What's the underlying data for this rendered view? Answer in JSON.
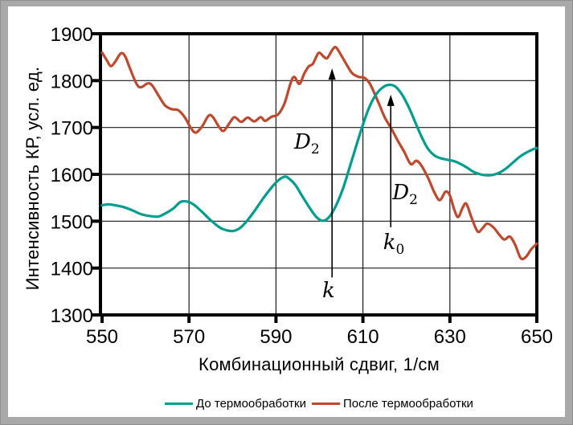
{
  "frame": {
    "outer_bg": "#a9a9a9",
    "panel_bg": "#ffffff",
    "axis_color": "#000000",
    "grid_color": "#1a1a1a"
  },
  "chart_data": {
    "type": "line",
    "title": "",
    "xlabel": "Комбинационный сдвиг, 1/см",
    "ylabel": "Интенсивность КР, усл. ед.",
    "xlim": [
      550,
      650
    ],
    "ylim": [
      1300,
      1900
    ],
    "x_ticks": [
      550,
      570,
      590,
      610,
      630,
      650
    ],
    "y_ticks": [
      1300,
      1400,
      1500,
      1600,
      1700,
      1800,
      1900
    ],
    "grid": true,
    "legend_position": "bottom",
    "series": [
      {
        "name": "До термообработки",
        "color": "#009e8f",
        "points": [
          [
            550,
            1534
          ],
          [
            551.5,
            1536
          ],
          [
            553,
            1534
          ],
          [
            555,
            1530
          ],
          [
            557,
            1523
          ],
          [
            559,
            1515
          ],
          [
            561,
            1511
          ],
          [
            563,
            1510
          ],
          [
            565,
            1519
          ],
          [
            566.5,
            1528
          ],
          [
            568,
            1541
          ],
          [
            569.5,
            1542
          ],
          [
            571,
            1536
          ],
          [
            573,
            1520
          ],
          [
            575,
            1502
          ],
          [
            577,
            1487
          ],
          [
            578.5,
            1481
          ],
          [
            580,
            1479
          ],
          [
            581.5,
            1484
          ],
          [
            583,
            1497
          ],
          [
            585,
            1521
          ],
          [
            587,
            1548
          ],
          [
            589,
            1572
          ],
          [
            590.5,
            1587
          ],
          [
            592,
            1595
          ],
          [
            593,
            1591
          ],
          [
            594.5,
            1577
          ],
          [
            596,
            1554
          ],
          [
            597.5,
            1532
          ],
          [
            599,
            1512
          ],
          [
            600.3,
            1502
          ],
          [
            601.3,
            1502
          ],
          [
            602.5,
            1512
          ],
          [
            604,
            1537
          ],
          [
            605.5,
            1572
          ],
          [
            607,
            1617
          ],
          [
            608.5,
            1662
          ],
          [
            610,
            1706
          ],
          [
            611.5,
            1744
          ],
          [
            613,
            1770
          ],
          [
            614.5,
            1785
          ],
          [
            616,
            1791
          ],
          [
            617.5,
            1787
          ],
          [
            619,
            1770
          ],
          [
            620.5,
            1744
          ],
          [
            622,
            1712
          ],
          [
            623.5,
            1680
          ],
          [
            625,
            1654
          ],
          [
            626.5,
            1640
          ],
          [
            628,
            1634
          ],
          [
            629.5,
            1631
          ],
          [
            631,
            1628
          ],
          [
            632.5,
            1622
          ],
          [
            634,
            1614
          ],
          [
            635.5,
            1605
          ],
          [
            637,
            1600
          ],
          [
            638.5,
            1598
          ],
          [
            640,
            1599
          ],
          [
            641.5,
            1604
          ],
          [
            643,
            1613
          ],
          [
            644.5,
            1625
          ],
          [
            646,
            1637
          ],
          [
            647.5,
            1646
          ],
          [
            649,
            1653
          ],
          [
            650,
            1656
          ]
        ]
      },
      {
        "name": "После термообработки",
        "color": "#c0492d",
        "points": [
          [
            550,
            1860
          ],
          [
            551,
            1845
          ],
          [
            552,
            1831
          ],
          [
            553,
            1840
          ],
          [
            554.3,
            1858
          ],
          [
            555.3,
            1852
          ],
          [
            556.5,
            1824
          ],
          [
            558,
            1792
          ],
          [
            559,
            1786
          ],
          [
            560.5,
            1794
          ],
          [
            561.5,
            1790
          ],
          [
            563,
            1768
          ],
          [
            564.5,
            1747
          ],
          [
            566,
            1739
          ],
          [
            567.5,
            1737
          ],
          [
            569,
            1722
          ],
          [
            570.3,
            1701
          ],
          [
            571.5,
            1689
          ],
          [
            573,
            1702
          ],
          [
            574.5,
            1725
          ],
          [
            575.5,
            1722
          ],
          [
            577,
            1700
          ],
          [
            578,
            1693
          ],
          [
            579.5,
            1712
          ],
          [
            580.5,
            1722
          ],
          [
            582,
            1712
          ],
          [
            583.5,
            1721
          ],
          [
            585,
            1713
          ],
          [
            586.5,
            1722
          ],
          [
            587.5,
            1714
          ],
          [
            589,
            1723
          ],
          [
            590.5,
            1728
          ],
          [
            592,
            1752
          ],
          [
            593.3,
            1793
          ],
          [
            594.2,
            1808
          ],
          [
            595.4,
            1793
          ],
          [
            596.5,
            1815
          ],
          [
            597.5,
            1830
          ],
          [
            598.5,
            1836
          ],
          [
            599.8,
            1859
          ],
          [
            601,
            1851
          ],
          [
            601.8,
            1848
          ],
          [
            603,
            1866
          ],
          [
            603.8,
            1871
          ],
          [
            605,
            1854
          ],
          [
            606.2,
            1835
          ],
          [
            607.5,
            1816
          ],
          [
            609,
            1808
          ],
          [
            610.3,
            1806
          ],
          [
            611.5,
            1795
          ],
          [
            612.5,
            1776
          ],
          [
            613.5,
            1755
          ],
          [
            615,
            1722
          ],
          [
            616.5,
            1698
          ],
          [
            618,
            1672
          ],
          [
            619.5,
            1648
          ],
          [
            621,
            1622
          ],
          [
            622.3,
            1629
          ],
          [
            623.5,
            1618
          ],
          [
            625,
            1592
          ],
          [
            626.5,
            1560
          ],
          [
            627.7,
            1545
          ],
          [
            629,
            1563
          ],
          [
            630,
            1555
          ],
          [
            631,
            1525
          ],
          [
            631.9,
            1509
          ],
          [
            633,
            1530
          ],
          [
            633.8,
            1537
          ],
          [
            635,
            1507
          ],
          [
            636.4,
            1478
          ],
          [
            637.5,
            1485
          ],
          [
            638.6,
            1495
          ],
          [
            640,
            1487
          ],
          [
            641.3,
            1472
          ],
          [
            642.5,
            1461
          ],
          [
            643.8,
            1467
          ],
          [
            645,
            1450
          ],
          [
            646.3,
            1421
          ],
          [
            647.5,
            1424
          ],
          [
            648.7,
            1440
          ],
          [
            650,
            1452
          ]
        ]
      }
    ],
    "annotations": {
      "arrows": [
        {
          "x": 602.9,
          "v_from": 1380,
          "v_to": 1826
        },
        {
          "x": 616.4,
          "v_from": 1487,
          "v_to": 1770
        }
      ],
      "labels": [
        {
          "main": "D",
          "sub": "2",
          "x": 597.1,
          "v": 1668
        },
        {
          "main": "D",
          "sub": "2",
          "x": 619.7,
          "v": 1560
        },
        {
          "main": "k",
          "sub": "",
          "x": 602.1,
          "v": 1352
        },
        {
          "main": "k",
          "sub": "0",
          "x": 617.1,
          "v": 1455
        }
      ]
    }
  }
}
